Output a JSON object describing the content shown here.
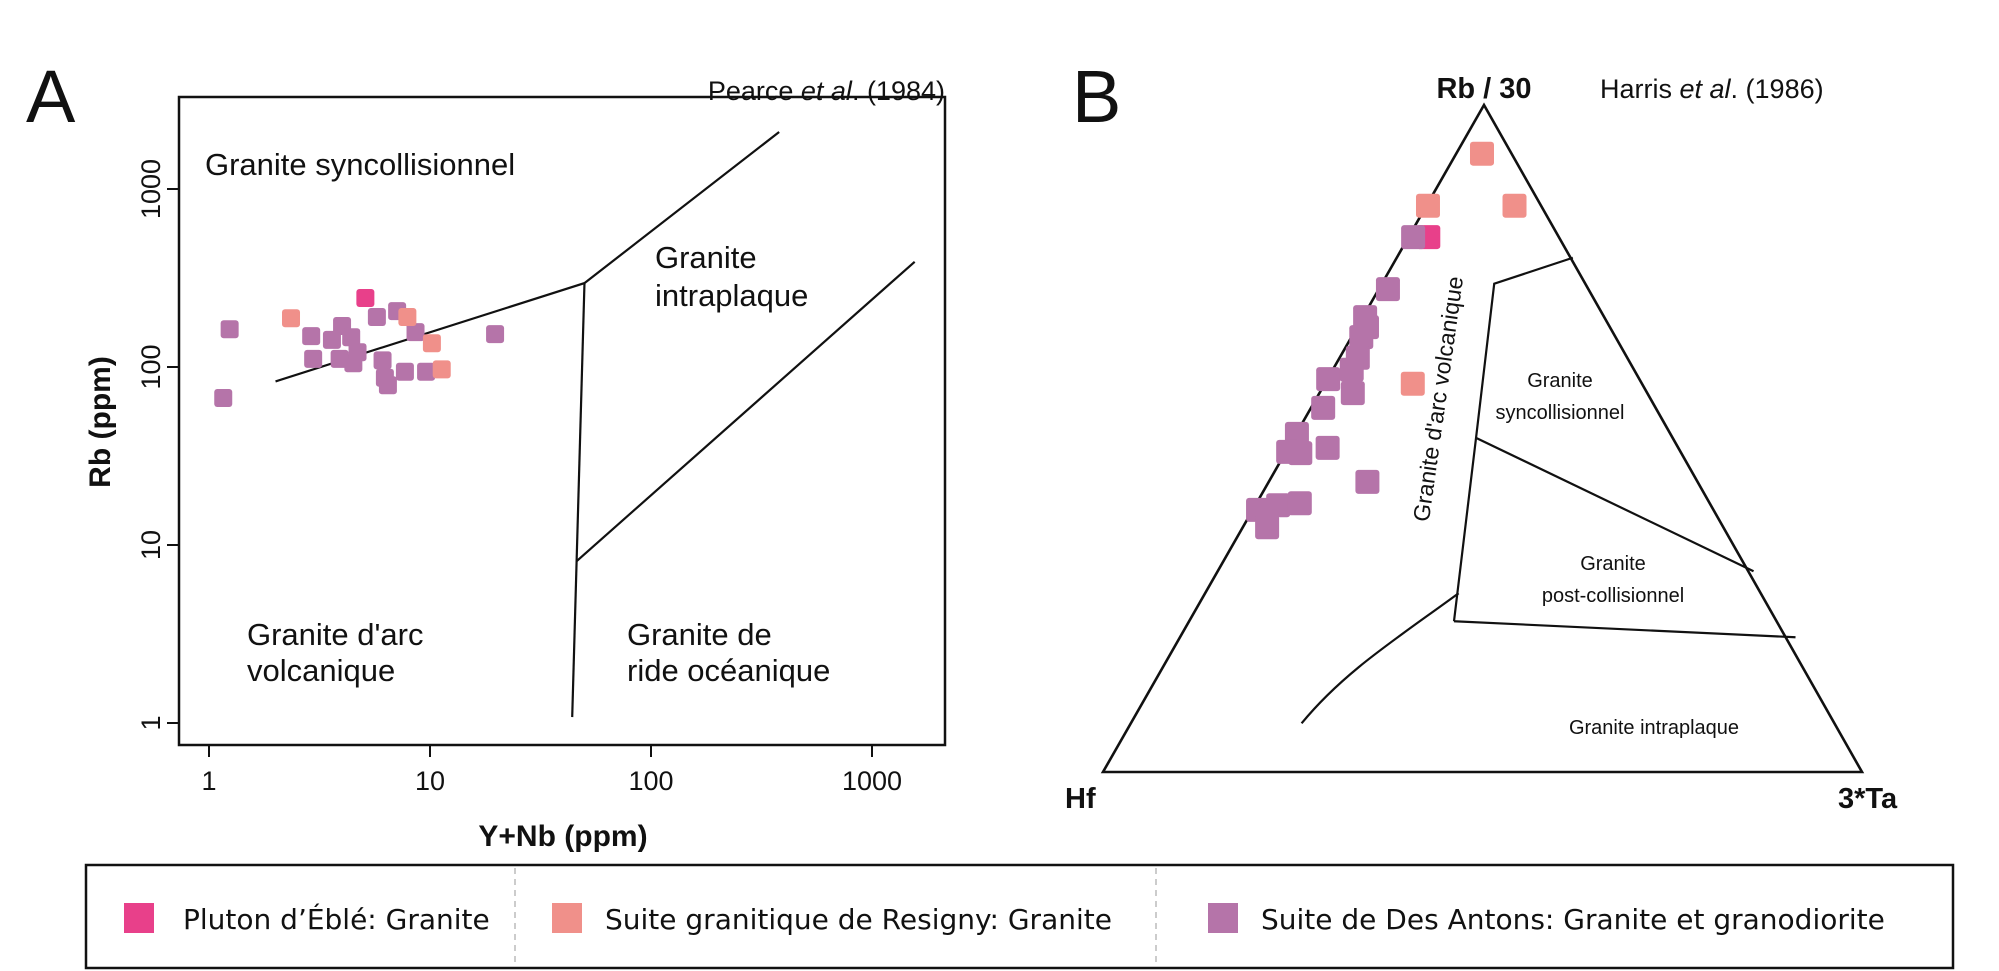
{
  "colors": {
    "pluton_eble": "#e8408a",
    "resigny": "#f0908a",
    "des_antons": "#b574a9"
  },
  "legend": [
    {
      "key": "pluton_eble",
      "label": "Pluton d’Éblé: Granite"
    },
    {
      "key": "resigny",
      "label": "Suite granitique de Resigny: Granite"
    },
    {
      "key": "des_antons",
      "label": "Suite de Des Antons: Granite et granodiorite"
    }
  ],
  "chart_data": [
    {
      "type": "scatter",
      "panel_label": "A",
      "reference": {
        "author": "Pearce ",
        "etal": "et al",
        "year": ". (1984)"
      },
      "xlabel": "Y+Nb (ppm)",
      "ylabel": "Rb (ppm)",
      "xscale": "log",
      "yscale": "log",
      "xlim": [
        0.8,
        2500
      ],
      "ylim": [
        0.75,
        2800
      ],
      "xticks": [
        "1",
        "10",
        "100",
        "1000"
      ],
      "yticks": [
        "1",
        "10",
        "100",
        "1000"
      ],
      "fields": {
        "syn_col": "Granite syncollisionnel",
        "wpg": [
          "Granite",
          "intraplaque"
        ],
        "vag": [
          "Granite d'arc",
          "volcanique"
        ],
        "org": [
          "Granite de",
          "ride océanique"
        ]
      },
      "boundaries": [
        [
          [
            2,
            83
          ],
          [
            50,
            296
          ],
          [
            380,
            2090
          ]
        ],
        [
          [
            50,
            296
          ],
          [
            44,
            1.08
          ]
        ],
        [
          [
            46,
            8.1
          ],
          [
            1560,
            390
          ]
        ]
      ],
      "series": [
        {
          "key": "des_antons",
          "points": [
            [
              1.24,
              163
            ],
            [
              1.16,
              67
            ],
            [
              5.75,
              191
            ],
            [
              7.1,
              206
            ],
            [
              8.6,
              157
            ],
            [
              19.7,
              153
            ],
            [
              2.9,
              149
            ],
            [
              4.0,
              170
            ],
            [
              3.6,
              142
            ],
            [
              4.4,
              147
            ],
            [
              2.96,
              111
            ],
            [
              3.9,
              111
            ],
            [
              4.5,
              105
            ],
            [
              4.7,
              121
            ],
            [
              6.1,
              109
            ],
            [
              6.25,
              87
            ],
            [
              6.45,
              79
            ],
            [
              7.7,
              94
            ],
            [
              9.6,
              94
            ]
          ]
        },
        {
          "key": "resigny",
          "points": [
            [
              2.35,
              188
            ],
            [
              7.9,
              191
            ],
            [
              10.2,
              136
            ],
            [
              11.3,
              97
            ]
          ]
        },
        {
          "key": "pluton_eble",
          "points": [
            [
              5.1,
              244
            ]
          ]
        }
      ]
    },
    {
      "type": "ternary",
      "panel_label": "B",
      "reference": {
        "author": "Harris ",
        "etal": "et al",
        "year": ". (1986)"
      },
      "apices": {
        "top": "Rb / 30",
        "left": "Hf",
        "right": "3*Ta"
      },
      "point_format": "[Rb/30, 3*Ta] fractions; Hf = 1 - sum",
      "fields": {
        "vag": "Granite d'arc volcanique",
        "syn_col": [
          "Granite",
          "syncollisionnel"
        ],
        "post_col": [
          "Granite",
          "post-collisionnel"
        ],
        "wpg": "Granite intraplaque"
      },
      "boundaries": [
        [
          [
            0.771,
            0.232
          ],
          [
            0.732,
            0.148
          ],
          [
            0.501,
            0.24
          ],
          [
            0.226,
            0.349
          ]
        ],
        [
          [
            0.501,
            0.24
          ],
          [
            0.301,
            0.706
          ]
        ],
        [
          [
            0.226,
            0.349
          ],
          [
            0.202,
            0.811
          ]
        ],
        [
          [
            0.073,
            0.225
          ],
          [
            0.15,
            0.242
          ],
          [
            0.198,
            0.285
          ],
          [
            0.268,
            0.334
          ]
        ]
      ],
      "series": [
        {
          "key": "pluton_eble",
          "points": [
            [
              0.802,
              0.026
            ]
          ]
        },
        {
          "key": "des_antons",
          "points": [
            [
              0.802,
              0.006
            ],
            [
              0.724,
              0.012
            ],
            [
              0.682,
              0.003
            ],
            [
              0.667,
              0.013
            ],
            [
              0.652,
              0.013
            ],
            [
              0.621,
              0.024
            ],
            [
              0.589,
              0.001
            ],
            [
              0.603,
              0.025
            ],
            [
              0.568,
              0.044
            ],
            [
              0.546,
              0.016
            ],
            [
              0.507,
              0.001
            ],
            [
              0.48,
              0.003
            ],
            [
              0.478,
              0.02
            ],
            [
              0.486,
              0.052
            ],
            [
              0.435,
              0.13
            ],
            [
              0.393,
              0.007
            ],
            [
              0.4,
              0.03
            ],
            [
              0.403,
              0.057
            ],
            [
              0.367,
              0.032
            ]
          ]
        },
        {
          "key": "resigny",
          "points": [
            [
              0.927,
              0.034
            ],
            [
              0.849,
              0.002
            ],
            [
              0.849,
              0.116
            ],
            [
              0.582,
              0.116
            ]
          ]
        }
      ]
    }
  ]
}
